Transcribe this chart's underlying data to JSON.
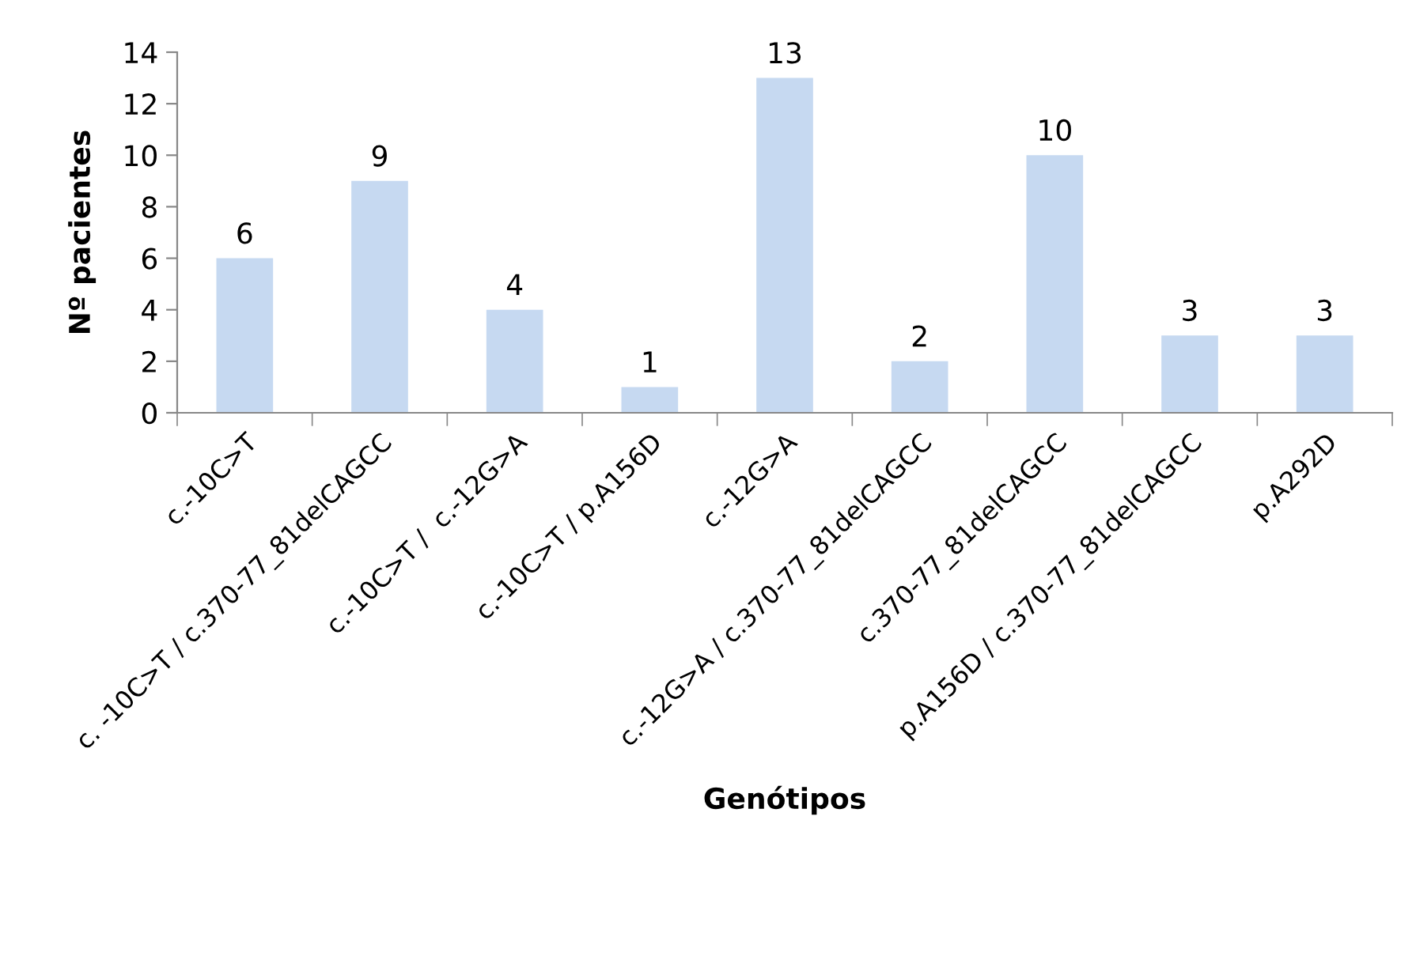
{
  "chart_data": {
    "type": "bar",
    "xlabel": "Genótipos",
    "ylabel": "Nº pacientes",
    "categories": [
      "c.-10C>T",
      "c. -10C>T / c.370-77_81delCAGCC",
      "c.-10C>T /  c.-12G>A",
      "c.-10C>T / p.A156D",
      "c.-12G>A",
      "c.-12G>A / c.370-77_81delCAGCC",
      "c.370-77_81delCAGCC",
      "p.A156D / c.370-77_81delCAGCC",
      "p.A292D"
    ],
    "values": [
      6,
      9,
      4,
      1,
      13,
      2,
      10,
      3,
      3
    ],
    "color": "#c6d9f1",
    "ylim": [
      0,
      14
    ],
    "yticks": [
      0,
      2,
      4,
      6,
      8,
      10,
      12,
      14
    ],
    "data_labels": true,
    "grid": false,
    "legend": false
  }
}
